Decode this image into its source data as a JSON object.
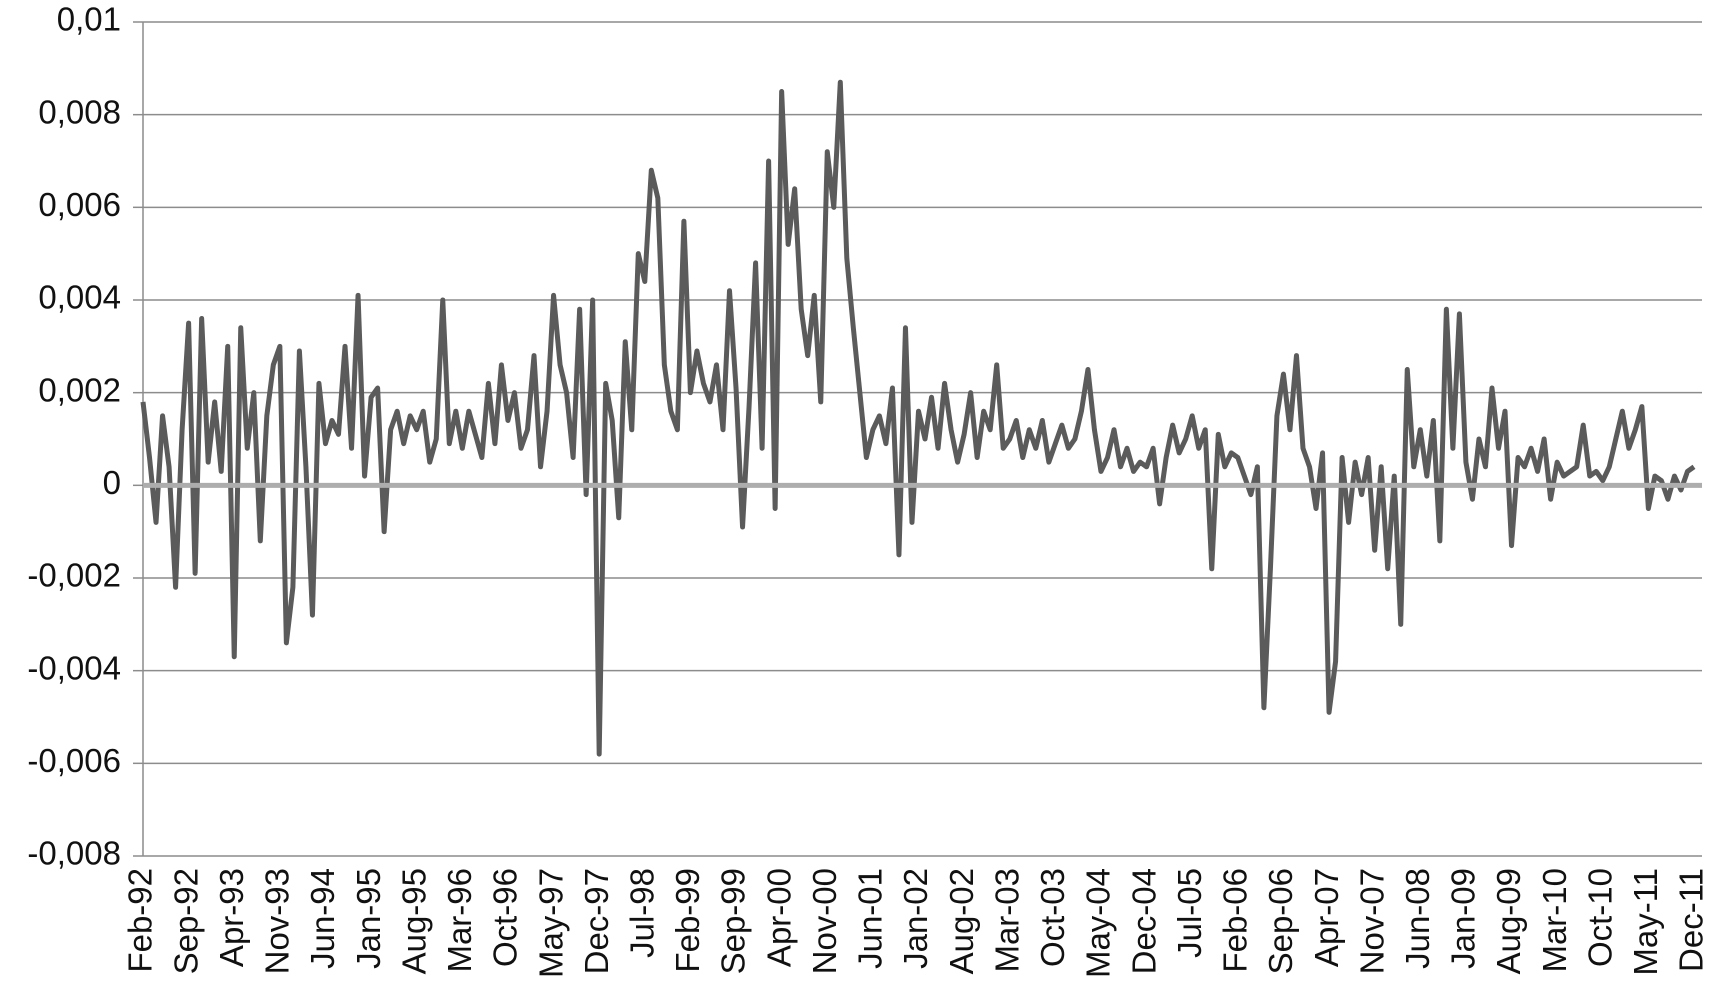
{
  "chart_data": {
    "type": "line",
    "color": "#5b5b5c",
    "grid": true,
    "ylim": [
      -0.008,
      0.01
    ],
    "yticks": [
      {
        "value": -0.008,
        "label": "-0,008"
      },
      {
        "value": -0.006,
        "label": "-0,006"
      },
      {
        "value": -0.004,
        "label": "-0,004"
      },
      {
        "value": -0.002,
        "label": "-0,002"
      },
      0,
      {
        "value": 0.002,
        "label": "0,002"
      },
      {
        "value": 0.004,
        "label": "0,004"
      },
      {
        "value": 0.006,
        "label": "0,006"
      },
      {
        "value": 0.008,
        "label": "0,008"
      },
      {
        "value": 0.01,
        "label": "0,01"
      }
    ],
    "categories": [
      "Feb-92",
      null,
      null,
      null,
      null,
      null,
      null,
      "Sep-92",
      null,
      null,
      null,
      null,
      null,
      null,
      "Apr-93",
      null,
      null,
      null,
      null,
      null,
      null,
      "Nov-93",
      null,
      null,
      null,
      null,
      null,
      null,
      "Jun-94",
      null,
      null,
      null,
      null,
      null,
      null,
      "Jan-95",
      null,
      null,
      null,
      null,
      null,
      null,
      "Aug-95",
      null,
      null,
      null,
      null,
      null,
      null,
      "Mar-96",
      null,
      null,
      null,
      null,
      null,
      null,
      "Oct-96",
      null,
      null,
      null,
      null,
      null,
      null,
      "May-97",
      null,
      null,
      null,
      null,
      null,
      null,
      "Dec-97",
      null,
      null,
      null,
      null,
      null,
      null,
      "Jul-98",
      null,
      null,
      null,
      null,
      null,
      null,
      "Feb-99",
      null,
      null,
      null,
      null,
      null,
      null,
      "Sep-99",
      null,
      null,
      null,
      null,
      null,
      null,
      "Apr-00",
      null,
      null,
      null,
      null,
      null,
      null,
      "Nov-00",
      null,
      null,
      null,
      null,
      null,
      null,
      "Jun-01",
      null,
      null,
      null,
      null,
      null,
      null,
      "Jan-02",
      null,
      null,
      null,
      null,
      null,
      null,
      "Aug-02",
      null,
      null,
      null,
      null,
      null,
      null,
      "Mar-03",
      null,
      null,
      null,
      null,
      null,
      null,
      "Oct-03",
      null,
      null,
      null,
      null,
      null,
      null,
      "May-04",
      null,
      null,
      null,
      null,
      null,
      null,
      "Dec-04",
      null,
      null,
      null,
      null,
      null,
      null,
      "Jul-05",
      null,
      null,
      null,
      null,
      null,
      null,
      "Feb-06",
      null,
      null,
      null,
      null,
      null,
      null,
      "Sep-06",
      null,
      null,
      null,
      null,
      null,
      null,
      "Apr-07",
      null,
      null,
      null,
      null,
      null,
      null,
      "Nov-07",
      null,
      null,
      null,
      null,
      null,
      null,
      "Jun-08",
      null,
      null,
      null,
      null,
      null,
      null,
      "Jan-09",
      null,
      null,
      null,
      null,
      null,
      null,
      "Aug-09",
      null,
      null,
      null,
      null,
      null,
      null,
      "Mar-10",
      null,
      null,
      null,
      null,
      null,
      null,
      "Oct-10",
      null,
      null,
      null,
      null,
      null,
      null,
      "May-11",
      null,
      null,
      null,
      null,
      null,
      null,
      "Dec-11"
    ],
    "values": [
      0.0018,
      0.0006,
      -0.0008,
      0.0015,
      0.0004,
      -0.0022,
      0.0012,
      0.0035,
      -0.0019,
      0.0036,
      0.0005,
      0.0018,
      0.0003,
      0.003,
      -0.0037,
      0.0034,
      0.0008,
      0.002,
      -0.0012,
      0.0015,
      0.0026,
      0.003,
      -0.0034,
      -0.0022,
      0.0029,
      0.0004,
      -0.0028,
      0.0022,
      0.0009,
      0.0014,
      0.0011,
      0.003,
      0.0008,
      0.0041,
      0.0002,
      0.0019,
      0.0021,
      -0.001,
      0.0012,
      0.0016,
      0.0009,
      0.0015,
      0.0012,
      0.0016,
      0.0005,
      0.001,
      0.004,
      0.0009,
      0.0016,
      0.0008,
      0.0016,
      0.0011,
      0.0006,
      0.0022,
      0.0009,
      0.0026,
      0.0014,
      0.002,
      0.0008,
      0.0012,
      0.0028,
      0.0004,
      0.0016,
      0.0041,
      0.0026,
      0.002,
      0.0006,
      0.0038,
      -0.0002,
      0.004,
      -0.0058,
      0.0022,
      0.0014,
      -0.0007,
      0.0031,
      0.0012,
      0.005,
      0.0044,
      0.0068,
      0.0062,
      0.0026,
      0.0016,
      0.0012,
      0.0057,
      0.002,
      0.0029,
      0.0022,
      0.0018,
      0.0026,
      0.0012,
      0.0042,
      0.0021,
      -0.0009,
      0.0017,
      0.0048,
      0.0008,
      0.007,
      -0.0005,
      0.0085,
      0.0052,
      0.0064,
      0.0038,
      0.0028,
      0.0041,
      0.0018,
      0.0072,
      0.006,
      0.0087,
      0.0049,
      0.0034,
      0.002,
      0.0006,
      0.0012,
      0.0015,
      0.0009,
      0.0021,
      -0.0015,
      0.0034,
      -0.0008,
      0.0016,
      0.001,
      0.0019,
      0.0008,
      0.0022,
      0.0012,
      0.0005,
      0.0011,
      0.002,
      0.0006,
      0.0016,
      0.0012,
      0.0026,
      0.0008,
      0.001,
      0.0014,
      0.0006,
      0.0012,
      0.0008,
      0.0014,
      0.0005,
      0.0009,
      0.0013,
      0.0008,
      0.001,
      0.0016,
      0.0025,
      0.0012,
      0.0003,
      0.0006,
      0.0012,
      0.0004,
      0.0008,
      0.0003,
      0.0005,
      0.0004,
      0.0008,
      -0.0004,
      0.0006,
      0.0013,
      0.0007,
      0.001,
      0.0015,
      0.0008,
      0.0012,
      -0.0018,
      0.0011,
      0.0004,
      0.0007,
      0.0006,
      0.0002,
      -0.0002,
      0.0004,
      -0.0048,
      -0.0018,
      0.0015,
      0.0024,
      0.0012,
      0.0028,
      0.0008,
      0.0004,
      -0.0005,
      0.0007,
      -0.0049,
      -0.0038,
      0.0006,
      -0.0008,
      0.0005,
      -0.0002,
      0.0006,
      -0.0014,
      0.0004,
      -0.0018,
      0.0002,
      -0.003,
      0.0025,
      0.0004,
      0.0012,
      0.0002,
      0.0014,
      -0.0012,
      0.0038,
      0.0008,
      0.0037,
      0.0005,
      -0.0003,
      0.001,
      0.0004,
      0.0021,
      0.0008,
      0.0016,
      -0.0013,
      0.0006,
      0.0004,
      0.0008,
      0.0003,
      0.001,
      -0.0003,
      0.0005,
      0.0002,
      0.0003,
      0.0004,
      0.0013,
      0.0002,
      0.0003,
      0.0001,
      0.0004,
      0.001,
      0.0016,
      0.0008,
      0.0012,
      0.0017,
      -0.0005,
      0.0002,
      0.0001,
      -0.0003,
      0.0002,
      -0.0001,
      0.0003,
      0.0004
    ]
  }
}
